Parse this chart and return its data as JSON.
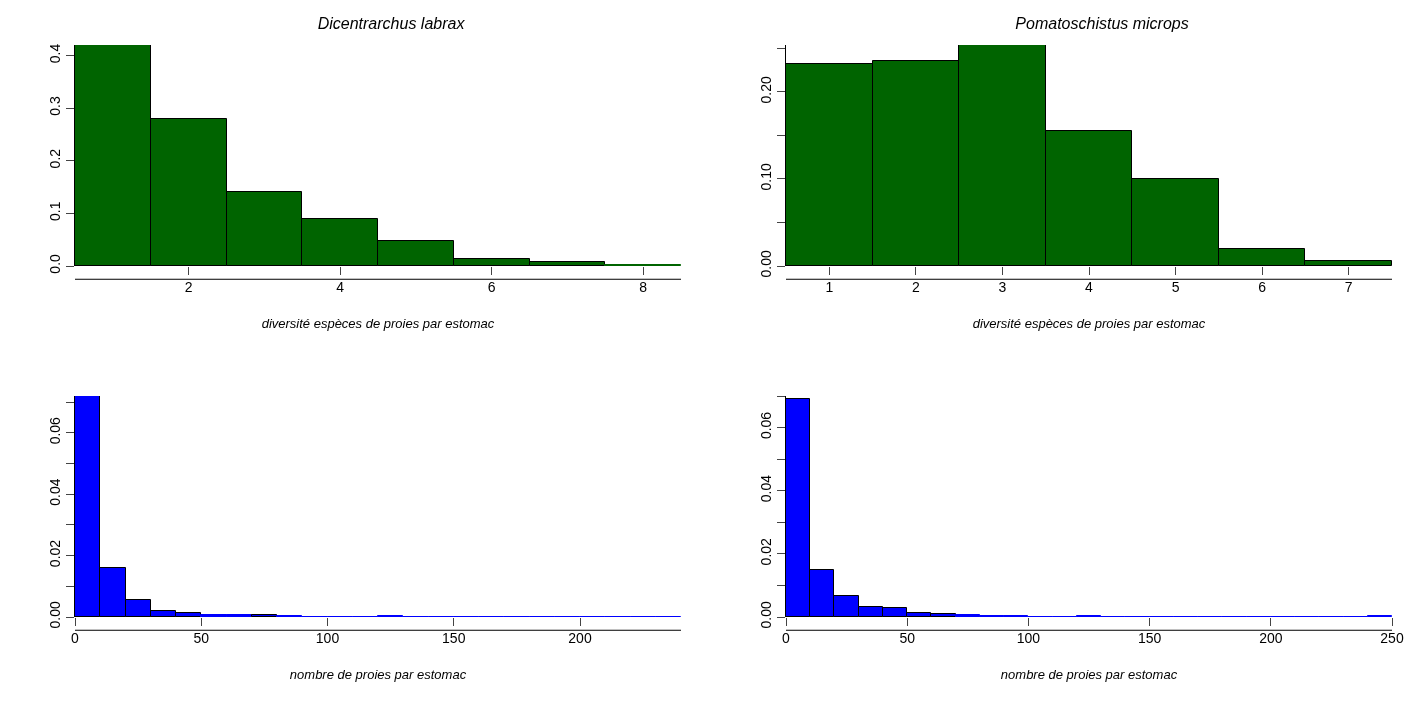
{
  "chart_data": [
    {
      "type": "histogram",
      "title": "Dicentrarchus labrax",
      "xlabel": "diversité espèces de proies par estomac",
      "color": "#006400",
      "bins": [
        0.5,
        1.5,
        2.5,
        3.5,
        4.5,
        5.5,
        6.5,
        7.5,
        8.5
      ],
      "values": [
        0.42,
        0.28,
        0.14,
        0.09,
        0.047,
        0.013,
        0.007,
        0.002
      ],
      "xlim": [
        0.5,
        8.5
      ],
      "xticks": [
        2,
        4,
        6,
        8
      ],
      "ylim": [
        0,
        0.42
      ],
      "yticks": [
        {
          "value": 0,
          "label": "0.0"
        },
        0.1,
        0.2,
        0.3,
        0.4
      ]
    },
    {
      "type": "histogram",
      "title": "Pomatoschistus microps",
      "xlabel": "diversité espèces de proies par estomac",
      "color": "#006400",
      "bins": [
        0.5,
        1.5,
        2.5,
        3.5,
        4.5,
        5.5,
        6.5,
        7.5
      ],
      "values": [
        0.232,
        0.236,
        0.254,
        0.155,
        0.1,
        0.02,
        0.006
      ],
      "xlim": [
        0.5,
        7.5
      ],
      "xticks": [
        1,
        2,
        3,
        4,
        5,
        6,
        7
      ],
      "ylim": [
        0,
        0.254
      ],
      "yticks": [
        {
          "value": 0,
          "label": "0.00"
        },
        {
          "value": 0.05,
          "label": null
        },
        {
          "value": 0.1,
          "label": "0.10"
        },
        {
          "value": 0.15,
          "label": null
        },
        {
          "value": 0.2,
          "label": "0.20"
        },
        {
          "value": 0.25,
          "label": null
        }
      ]
    },
    {
      "type": "histogram",
      "xlabel": "nombre de proies par estomac",
      "color": "#0000ff",
      "bins": [
        0,
        10,
        20,
        30,
        40,
        50,
        60,
        70,
        80,
        90,
        100,
        110,
        120,
        130,
        140,
        150,
        160,
        170,
        180,
        190,
        200,
        210,
        220,
        230,
        240
      ],
      "values": [
        0.072,
        0.016,
        0.0055,
        0.002,
        0.0013,
        0.0006,
        0.0006,
        0.0008,
        0.0003,
        0.0001,
        0,
        0,
        0.0002,
        0,
        0,
        0,
        0,
        0,
        0,
        0,
        0,
        0,
        0,
        0.0001
      ],
      "xlim": [
        0,
        240
      ],
      "xticks": [
        0,
        50,
        100,
        150,
        200
      ],
      "ylim": [
        0,
        0.072
      ],
      "yticks": [
        {
          "value": 0,
          "label": "0.00"
        },
        {
          "value": 0.01,
          "label": null
        },
        {
          "value": 0.02,
          "label": "0.02"
        },
        {
          "value": 0.03,
          "label": null
        },
        {
          "value": 0.04,
          "label": "0.04"
        },
        {
          "value": 0.05,
          "label": null
        },
        {
          "value": 0.06,
          "label": "0.06"
        },
        {
          "value": 0.07,
          "label": null
        }
      ]
    },
    {
      "type": "histogram",
      "xlabel": "nombre de proies par estomac",
      "color": "#0000ff",
      "bins": [
        0,
        10,
        20,
        30,
        40,
        50,
        60,
        70,
        80,
        90,
        100,
        110,
        120,
        130,
        140,
        150,
        160,
        170,
        180,
        190,
        200,
        210,
        220,
        230,
        240,
        250
      ],
      "values": [
        0.069,
        0.015,
        0.0065,
        0.0033,
        0.0027,
        0.0013,
        0.001,
        0.0005,
        0.0003,
        0.0002,
        0.0001,
        0,
        0.0002,
        0,
        0,
        0,
        0,
        0,
        0,
        0,
        0,
        0,
        0,
        0,
        0.0004
      ],
      "xlim": [
        0,
        250
      ],
      "xticks": [
        0,
        50,
        100,
        150,
        200,
        250
      ],
      "ylim": [
        0,
        0.07
      ],
      "yticks": [
        {
          "value": 0,
          "label": "0.00"
        },
        {
          "value": 0.01,
          "label": null
        },
        {
          "value": 0.02,
          "label": "0.02"
        },
        {
          "value": 0.03,
          "label": null
        },
        {
          "value": 0.04,
          "label": "0.04"
        },
        {
          "value": 0.05,
          "label": null
        },
        {
          "value": 0.06,
          "label": "0.06"
        },
        {
          "value": 0.07,
          "label": null
        }
      ]
    }
  ]
}
